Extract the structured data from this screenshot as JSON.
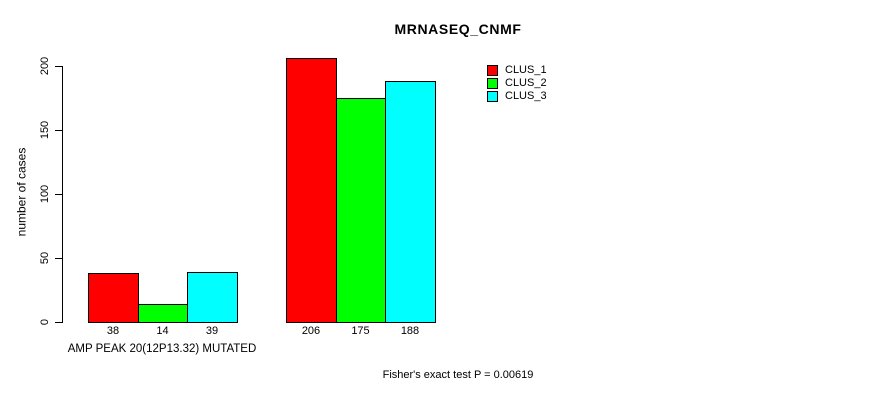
{
  "chart_data": {
    "type": "bar",
    "title": "MRNASEQ_CNMF",
    "ylabel": "number of cases",
    "ylim": [
      0,
      210
    ],
    "yticks": [
      0,
      50,
      100,
      150,
      200
    ],
    "grid": false,
    "legend_position": "top-right",
    "categories": [
      "AMP PEAK 20(12P13.32) MUTATED",
      ""
    ],
    "series": [
      {
        "name": "CLUS_1",
        "color": "#ff0000",
        "values": [
          38,
          206
        ]
      },
      {
        "name": "CLUS_2",
        "color": "#00ff00",
        "values": [
          14,
          175
        ]
      },
      {
        "name": "CLUS_3",
        "color": "#00ffff",
        "values": [
          39,
          188
        ]
      }
    ],
    "bar_value_labels": [
      [
        38,
        14,
        39
      ],
      [
        206,
        175,
        188
      ]
    ],
    "annotation": "Fisher's exact test P = 0.00619"
  }
}
